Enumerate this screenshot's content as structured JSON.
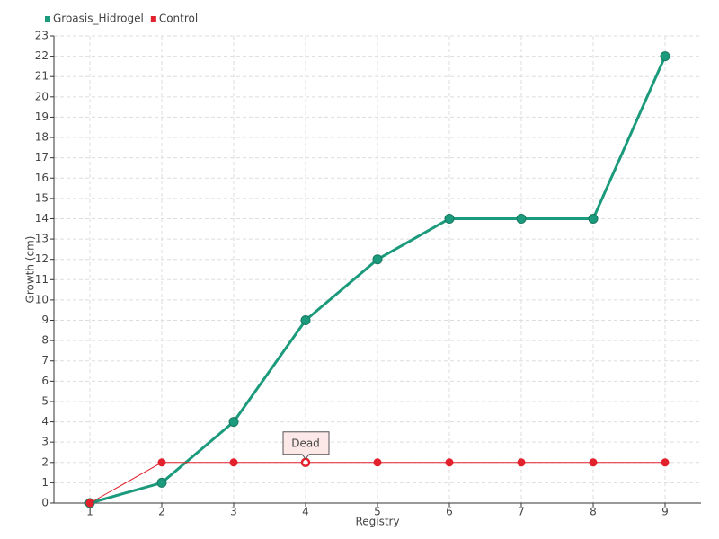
{
  "chart_data": {
    "type": "line",
    "x": [
      1,
      2,
      3,
      4,
      5,
      6,
      7,
      8,
      9
    ],
    "xlim": [
      0.5,
      9.5
    ],
    "xticks": [
      1,
      2,
      3,
      4,
      5,
      6,
      7,
      8,
      9
    ],
    "ylim": [
      0,
      23
    ],
    "yticks": [
      0,
      1,
      2,
      3,
      4,
      5,
      6,
      7,
      8,
      9,
      10,
      11,
      12,
      13,
      14,
      15,
      16,
      17,
      18,
      19,
      20,
      21,
      22,
      23
    ],
    "xlabel": "Registry",
    "ylabel": "Growth (cm)",
    "grid": true,
    "legend": "top-left",
    "series": [
      {
        "name": "Groasis_Hidrogel",
        "color": "#1b9a7c",
        "values": [
          0,
          1,
          4,
          9,
          12,
          14,
          14,
          14,
          22
        ]
      },
      {
        "name": "Control",
        "color": "#e3212d",
        "values": [
          0,
          2,
          2,
          2,
          2,
          2,
          2,
          2,
          2
        ]
      }
    ],
    "annotation": {
      "text": "Dead",
      "x": 4,
      "y": 2
    }
  }
}
